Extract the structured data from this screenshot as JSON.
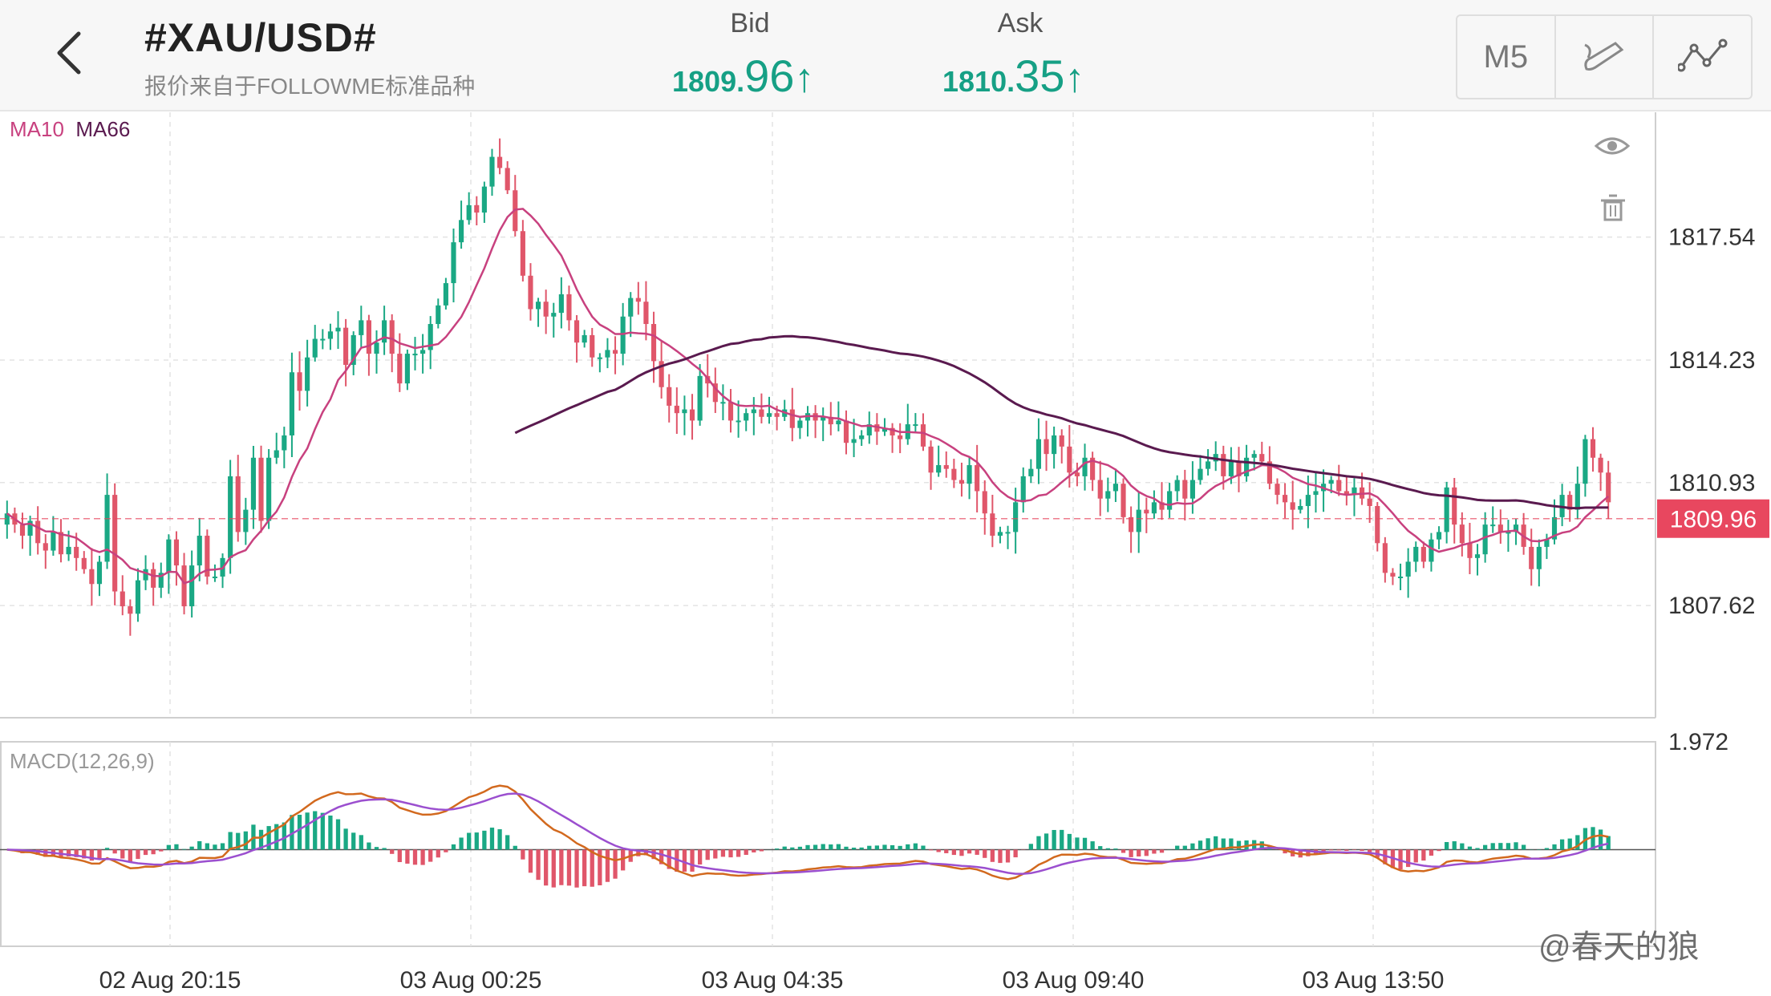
{
  "header": {
    "symbol": "#XAU/USD#",
    "subtitle": "报价来自于FOLLOWME标准品种",
    "bid_label": "Bid",
    "bid_small": "1809.",
    "bid_big": "96",
    "ask_label": "Ask",
    "ask_small": "1810.",
    "ask_big": "35",
    "arrow": "↑",
    "timeframe": "M5"
  },
  "legend": {
    "ma10": "MA10",
    "ma66": "MA66",
    "macd": "MACD(12,26,9)"
  },
  "colors": {
    "up": "#1aa884",
    "down": "#e0566a",
    "ma10": "#c8417f",
    "ma66": "#5a1a4f",
    "dif": "#d2691e",
    "dea": "#9b4fcf",
    "quote": "#16a085",
    "price_tag": "#e8475f"
  },
  "watermark": "@春天的狼",
  "chart_data": {
    "type": "candlestick",
    "price_axis": {
      "ticks": [
        1817.54,
        1814.23,
        1810.93,
        1807.62
      ],
      "range": [
        1804.6,
        1820.9
      ]
    },
    "current_price": 1809.96,
    "time_axis": [
      "02 Aug 20:15",
      "03 Aug 00:25",
      "03 Aug 04:35",
      "03 Aug 09:40",
      "03 Aug 13:50"
    ],
    "macd_axis": {
      "top_label": 1.972,
      "range": [
        -2.6,
        2.9
      ]
    },
    "candles_close": [
      1810.1,
      1809.8,
      1809.5,
      1809.9,
      1809.3,
      1809.1,
      1809.6,
      1809.0,
      1809.2,
      1808.9,
      1808.6,
      1808.2,
      1808.8,
      1810.6,
      1808.0,
      1807.6,
      1807.4,
      1808.3,
      1808.6,
      1808.1,
      1808.5,
      1809.4,
      1808.7,
      1807.6,
      1808.7,
      1809.5,
      1808.4,
      1808.4,
      1808.9,
      1811.1,
      1809.6,
      1810.2,
      1811.6,
      1809.9,
      1811.6,
      1811.8,
      1812.2,
      1813.9,
      1813.4,
      1814.3,
      1814.8,
      1814.8,
      1815.0,
      1815.1,
      1814.1,
      1814.9,
      1815.3,
      1814.4,
      1814.7,
      1815.3,
      1814.4,
      1813.6,
      1814.4,
      1814.4,
      1814.5,
      1815.2,
      1815.7,
      1816.3,
      1817.4,
      1818.0,
      1818.4,
      1818.2,
      1818.9,
      1819.7,
      1819.4,
      1818.8,
      1817.7,
      1816.5,
      1815.6,
      1815.8,
      1815.4,
      1815.5,
      1816.0,
      1815.3,
      1814.7,
      1814.9,
      1814.3,
      1814.3,
      1814.5,
      1814.4,
      1815.4,
      1815.9,
      1815.8,
      1815.2,
      1814.2,
      1813.5,
      1813.0,
      1812.8,
      1812.9,
      1812.6,
      1813.8,
      1813.6,
      1813.1,
      1813.1,
      1812.6,
      1812.6,
      1812.8,
      1812.9,
      1812.7,
      1812.8,
      1812.7,
      1812.9,
      1812.4,
      1812.6,
      1812.8,
      1812.6,
      1812.7,
      1812.5,
      1812.6,
      1812.0,
      1812.1,
      1812.2,
      1812.5,
      1812.3,
      1812.4,
      1812.2,
      1812.1,
      1812.5,
      1812.5,
      1811.9,
      1811.2,
      1811.4,
      1811.3,
      1811.0,
      1810.9,
      1811.4,
      1810.7,
      1810.1,
      1809.5,
      1809.6,
      1809.6,
      1810.4,
      1811.1,
      1811.3,
      1812.1,
      1811.7,
      1812.2,
      1811.9,
      1811.2,
      1811.1,
      1811.6,
      1811.0,
      1810.5,
      1810.7,
      1810.9,
      1810.0,
      1809.6,
      1810.2,
      1810.1,
      1810.4,
      1810.2,
      1810.7,
      1811.0,
      1810.5,
      1811.0,
      1811.3,
      1811.5,
      1811.7,
      1811.1,
      1811.5,
      1811.1,
      1811.6,
      1811.7,
      1811.5,
      1810.9,
      1810.6,
      1810.4,
      1810.2,
      1810.3,
      1810.6,
      1810.7,
      1810.9,
      1811.0,
      1810.7,
      1810.6,
      1810.8,
      1810.5,
      1810.3,
      1809.3,
      1808.5,
      1808.4,
      1808.4,
      1808.8,
      1809.2,
      1808.8,
      1809.4,
      1809.6,
      1810.8,
      1809.8,
      1809.3,
      1808.9,
      1809.0,
      1809.8,
      1809.8,
      1809.6,
      1809.6,
      1809.8,
      1809.2,
      1808.6,
      1809.2,
      1809.4,
      1810.0,
      1810.6,
      1810.2,
      1810.9,
      1812.1,
      1811.6,
      1811.2,
      1810.4
    ]
  }
}
